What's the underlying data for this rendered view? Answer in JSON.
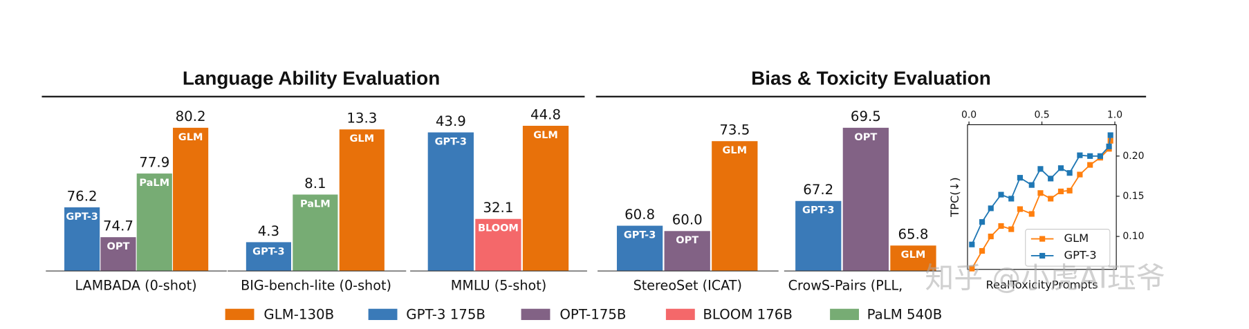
{
  "header": {
    "left_title": "Language Ability Evaluation",
    "right_title": "Bias & Toxicity Evaluation"
  },
  "legend": [
    {
      "name": "GLM-130B",
      "color": "#e8710a"
    },
    {
      "name": "GPT-3 175B",
      "color": "#3a7ab8"
    },
    {
      "name": "OPT-175B",
      "color": "#826285"
    },
    {
      "name": "BLOOM 176B",
      "color": "#f4686a"
    },
    {
      "name": "PaLM 540B",
      "color": "#77ac74"
    }
  ],
  "watermark": "知乎 @小虎AI珏爷",
  "chart_data": [
    {
      "type": "bar",
      "xlabel": "LAMBADA (0-shot)",
      "values": [
        76.2,
        74.7,
        77.9,
        80.2
      ],
      "value_labels": [
        "76.2",
        "74.7",
        "77.9",
        "80.2"
      ],
      "bar_labels": [
        "GPT-3",
        "OPT",
        "PaLM",
        "GLM"
      ],
      "colors": [
        "#3a7ab8",
        "#826285",
        "#77ac74",
        "#e8710a"
      ],
      "ylim": [
        73,
        81
      ]
    },
    {
      "type": "bar",
      "xlabel": "BIG-bench-lite (0-shot)",
      "values": [
        4.3,
        8.1,
        13.3
      ],
      "value_labels": [
        "4.3",
        "8.1",
        "13.3"
      ],
      "bar_labels": [
        "GPT-3",
        "PaLM",
        "GLM"
      ],
      "colors": [
        "#3a7ab8",
        "#77ac74",
        "#e8710a"
      ],
      "ylim": [
        2,
        14.7
      ]
    },
    {
      "type": "bar",
      "xlabel": "MMLU (5-shot)",
      "values": [
        43.9,
        32.1,
        44.8
      ],
      "value_labels": [
        "43.9",
        "32.1",
        "44.8"
      ],
      "bar_labels": [
        "GPT-3",
        "BLOOM",
        "GLM"
      ],
      "colors": [
        "#3a7ab8",
        "#f4686a",
        "#e8710a"
      ],
      "ylim": [
        25,
        46.7
      ]
    },
    {
      "type": "bar",
      "xlabel": "StereoSet (ICAT)",
      "values": [
        60.8,
        60,
        73.5
      ],
      "value_labels": [
        "60.8",
        "60.0",
        "73.5"
      ],
      "bar_labels": [
        "GPT-3",
        "OPT",
        "GLM"
      ],
      "colors": [
        "#3a7ab8",
        "#826285",
        "#e8710a"
      ],
      "ylim": [
        54,
        77.9
      ]
    },
    {
      "type": "bar",
      "xlabel": "CrowS-Pairs (PLL,",
      "values": [
        67.2,
        69.5,
        65.8
      ],
      "value_labels": [
        "67.2",
        "69.5",
        "65.8"
      ],
      "bar_labels": [
        "GPT-3",
        "OPT",
        "GLM"
      ],
      "colors": [
        "#3a7ab8",
        "#826285",
        "#e8710a"
      ],
      "ylim": [
        65,
        70
      ]
    },
    {
      "type": "line",
      "xlabel": "RealToxicityPrompts",
      "ylabel": "TPC(↓)",
      "x": [
        0.02,
        0.09,
        0.15,
        0.22,
        0.29,
        0.35,
        0.43,
        0.49,
        0.56,
        0.63,
        0.69,
        0.76,
        0.83,
        0.9,
        0.96,
        0.97
      ],
      "series": [
        {
          "name": "GLM",
          "color": "#ff7f0e",
          "values": [
            0.06,
            0.082,
            0.1,
            0.113,
            0.109,
            0.134,
            0.128,
            0.154,
            0.147,
            0.156,
            0.157,
            0.177,
            0.189,
            0.198,
            0.209,
            0.219
          ]
        },
        {
          "name": "GPT-3",
          "color": "#1f77b4",
          "values": [
            0.09,
            0.118,
            0.135,
            0.152,
            0.147,
            0.173,
            0.164,
            0.184,
            0.172,
            0.185,
            0.179,
            0.201,
            0.2,
            0.2,
            0.212,
            0.226
          ]
        }
      ],
      "xlim": [
        -0.01,
        1.01
      ],
      "ylim": [
        0.059,
        0.239
      ],
      "xticks": [
        {
          "value": 0,
          "label": "0.0"
        },
        0.5,
        {
          "value": 1,
          "label": "1.0"
        }
      ],
      "yticks": [
        {
          "value": 0.1,
          "label": "0.10"
        },
        0.15,
        {
          "value": 0.2,
          "label": "0.20"
        }
      ],
      "legend_position": "lower right"
    }
  ]
}
